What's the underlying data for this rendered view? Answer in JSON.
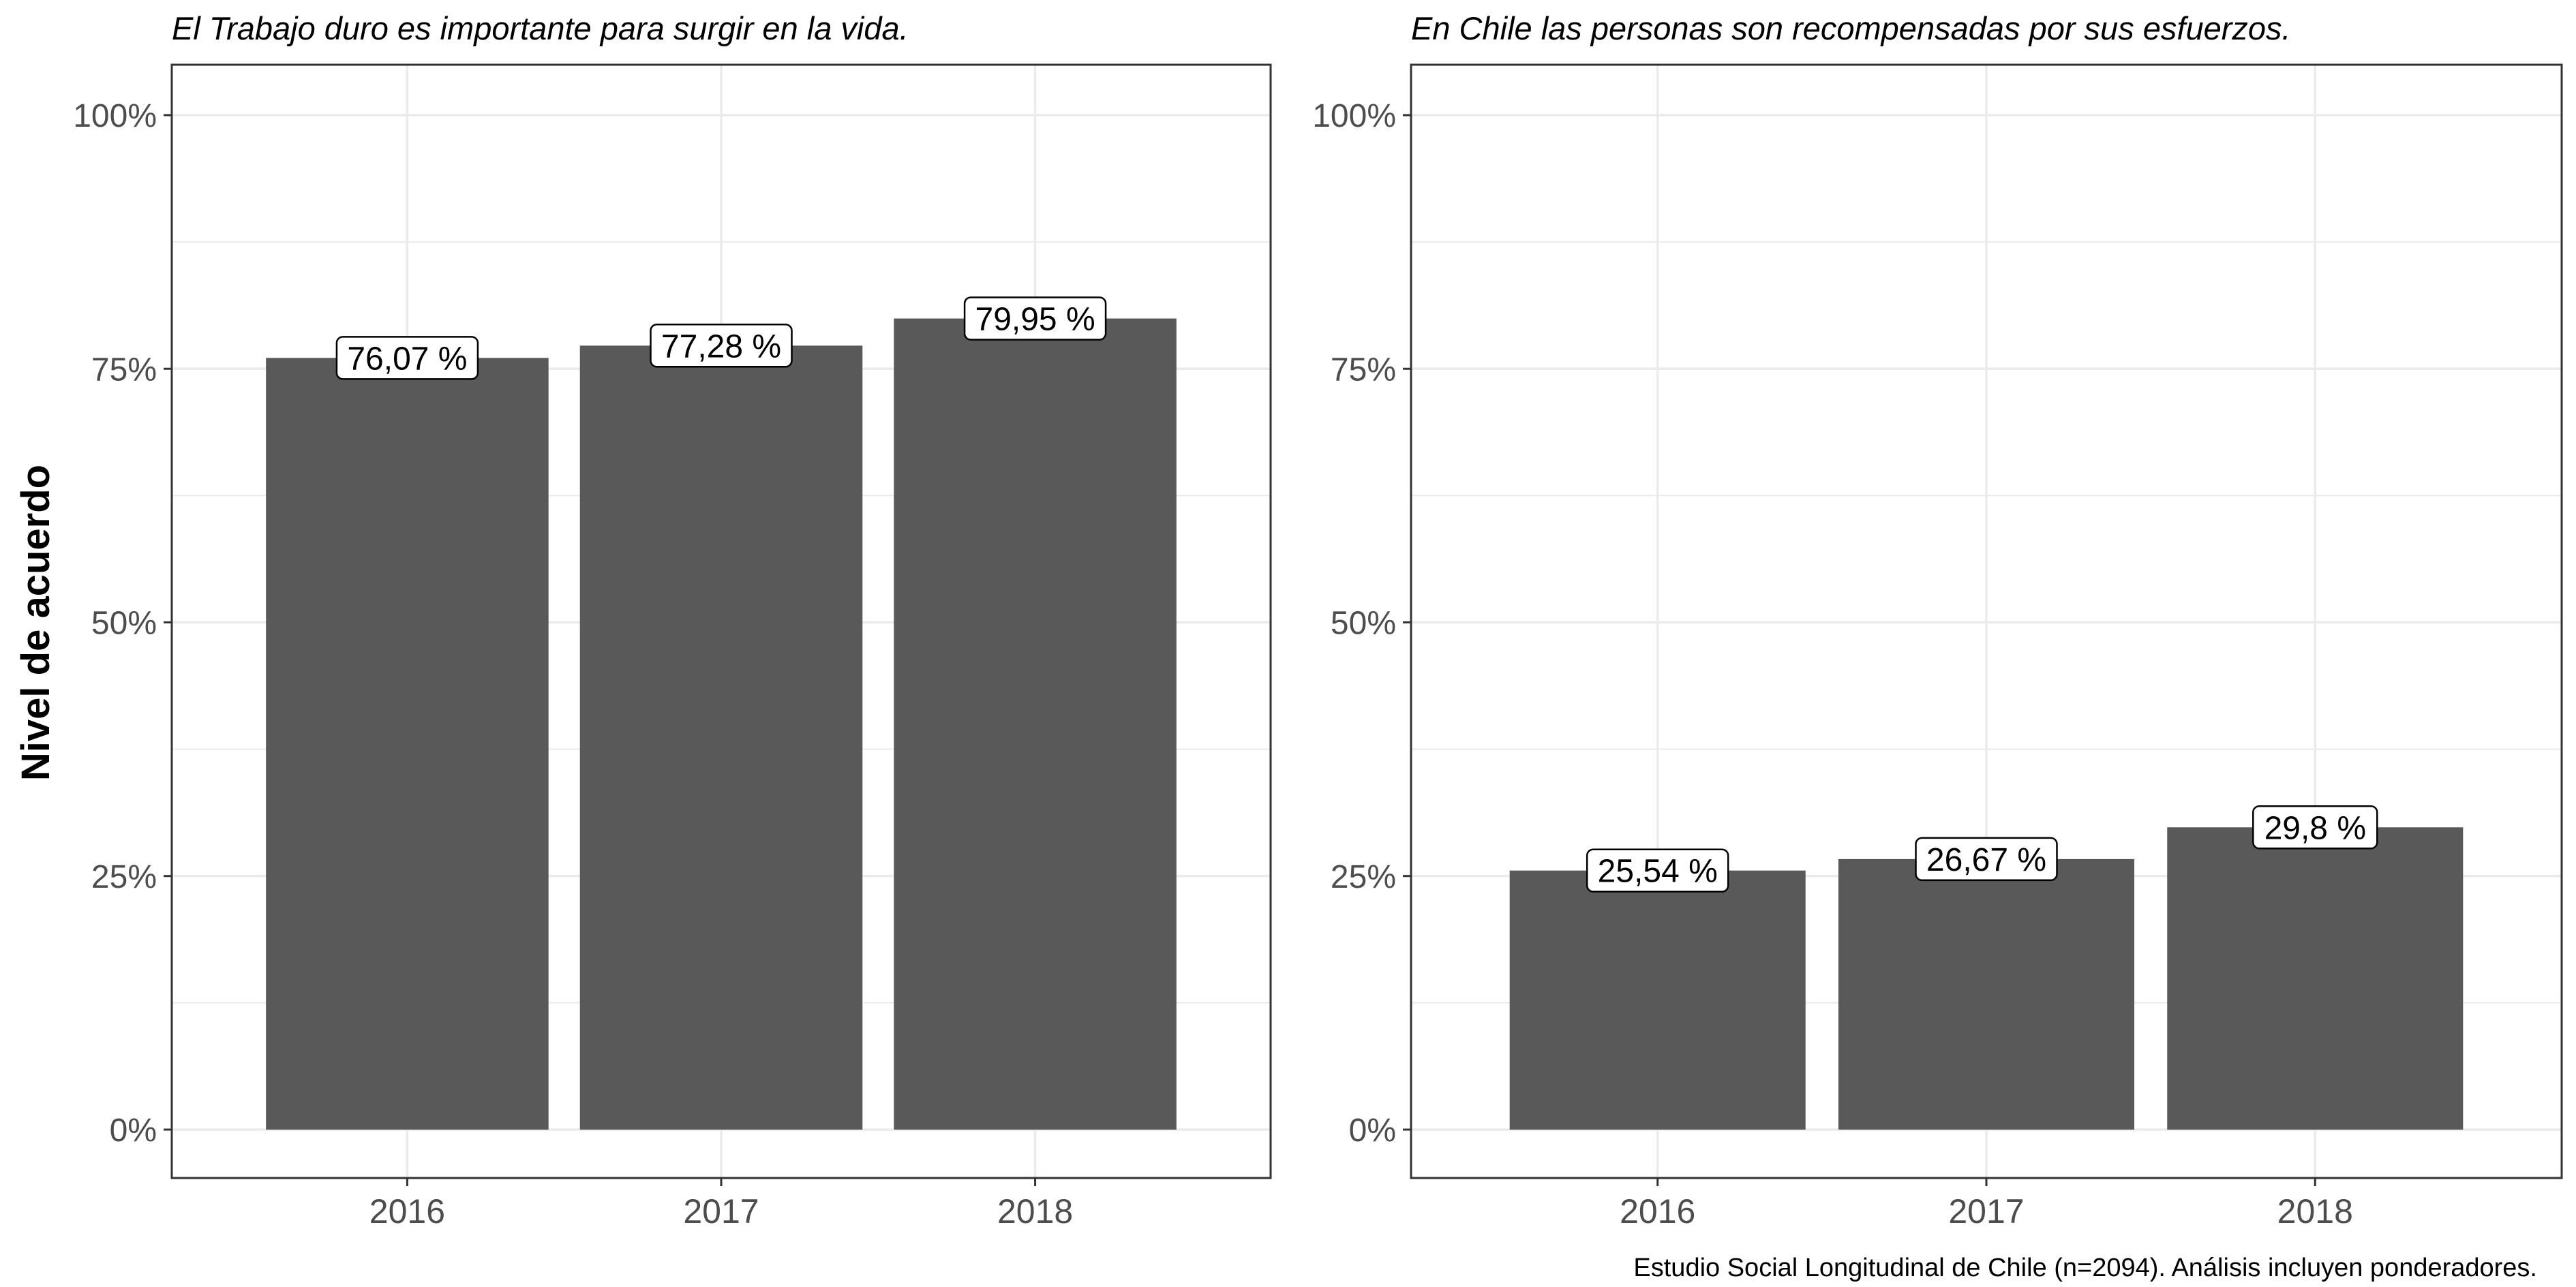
{
  "ylabel": "Nivel de acuerdo",
  "caption": "Estudio Social Longitudinal de Chile (n=2094). Análisis incluyen ponderadores.",
  "colors": {
    "bar": "#595959",
    "grid": "#ebebeb",
    "axis_text": "#4d4d4d",
    "panel_border": "#333333",
    "label_bg": "#ffffff"
  },
  "chart_data": [
    {
      "type": "bar",
      "title": "El Trabajo duro es importante para surgir en la vida.",
      "categories": [
        "2016",
        "2017",
        "2018"
      ],
      "values": [
        76.07,
        77.28,
        79.95
      ],
      "data_labels": [
        "76,07 %",
        "77,28 %",
        "79,95 %"
      ],
      "ylim": [
        0,
        100
      ],
      "yticks": [
        0,
        25,
        50,
        75,
        100
      ],
      "ytick_labels": [
        "0%",
        "25%",
        "50%",
        "75%",
        "100%"
      ],
      "ylabel": "Nivel de acuerdo",
      "grid": true
    },
    {
      "type": "bar",
      "title": "En Chile las personas son recompensadas por sus esfuerzos.",
      "categories": [
        "2016",
        "2017",
        "2018"
      ],
      "values": [
        25.54,
        26.67,
        29.8
      ],
      "data_labels": [
        "25,54 %",
        "26,67 %",
        "29,8 %"
      ],
      "ylim": [
        0,
        100
      ],
      "yticks": [
        0,
        25,
        50,
        75,
        100
      ],
      "ytick_labels": [
        "0%",
        "25%",
        "50%",
        "75%",
        "100%"
      ],
      "grid": true
    }
  ]
}
